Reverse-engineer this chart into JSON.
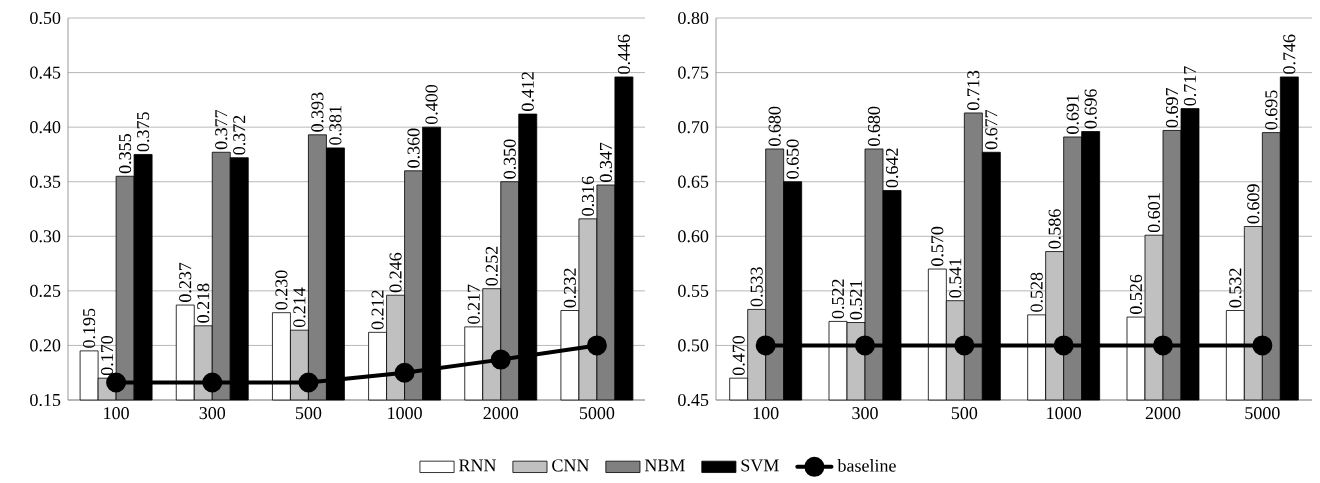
{
  "chart_data": [
    {
      "type": "bar",
      "categories": [
        "100",
        "300",
        "500",
        "1000",
        "2000",
        "5000"
      ],
      "ylim": [
        0.15,
        0.5
      ],
      "yticks": [
        0.15,
        {
          "value": 0.2,
          "label": "0.20"
        },
        0.25,
        {
          "value": 0.3,
          "label": "0.30"
        },
        0.35,
        {
          "value": 0.4,
          "label": "0.40"
        },
        0.45,
        {
          "value": 0.5,
          "label": "0.50"
        }
      ],
      "grid": "y",
      "legend": "bottom",
      "series": [
        {
          "name": "RNN",
          "color": "#ffffff",
          "values": [
            0.195,
            0.237,
            0.23,
            0.212,
            0.217,
            0.232
          ],
          "value_labels": [
            "0.195",
            "0.237",
            "0.230",
            "0.212",
            "0.217",
            "0.232"
          ]
        },
        {
          "name": "CNN",
          "color": "#c0c0c0",
          "values": [
            0.17,
            0.218,
            0.214,
            0.246,
            0.252,
            0.316
          ],
          "value_labels": [
            "0.170",
            "0.218",
            "0.214",
            "0.246",
            "0.252",
            "0.316"
          ]
        },
        {
          "name": "NBM",
          "color": "#808080",
          "values": [
            0.355,
            0.377,
            0.393,
            0.36,
            0.35,
            0.347
          ],
          "value_labels": [
            "0.355",
            "0.377",
            "0.393",
            "0.360",
            "0.350",
            "0.347"
          ]
        },
        {
          "name": "SVM",
          "color": "#000000",
          "values": [
            0.375,
            0.372,
            0.381,
            0.4,
            0.412,
            0.446
          ],
          "value_labels": [
            "0.375",
            "0.372",
            "0.381",
            "0.400",
            "0.412",
            "0.446"
          ]
        },
        {
          "name": "baseline",
          "type": "line",
          "marker": "circle",
          "color": "#000000",
          "values": [
            0.166,
            0.166,
            0.166,
            0.175,
            0.187,
            0.2
          ]
        }
      ]
    },
    {
      "type": "bar",
      "categories": [
        "100",
        "300",
        "500",
        "1000",
        "2000",
        "5000"
      ],
      "ylim": [
        0.45,
        0.8
      ],
      "yticks": [
        0.45,
        {
          "value": 0.5,
          "label": "0.50"
        },
        0.55,
        {
          "value": 0.6,
          "label": "0.60"
        },
        0.65,
        {
          "value": 0.7,
          "label": "0.70"
        },
        0.75,
        {
          "value": 0.8,
          "label": "0.80"
        }
      ],
      "grid": "y",
      "series": [
        {
          "color": "#ffffff",
          "values": [
            0.47,
            0.522,
            0.57,
            0.528,
            0.526,
            0.532
          ],
          "value_labels": [
            "0.470",
            "0.522",
            "0.570",
            "0.528",
            "0.526",
            "0.532"
          ]
        },
        {
          "color": "#c0c0c0",
          "values": [
            0.533,
            0.521,
            0.541,
            0.586,
            0.601,
            0.609
          ],
          "value_labels": [
            "0.533",
            "0.521",
            "0.541",
            "0.586",
            "0.601",
            "0.609"
          ]
        },
        {
          "color": "#808080",
          "values": [
            0.68,
            0.68,
            0.713,
            0.691,
            0.697,
            0.695
          ],
          "value_labels": [
            "0.680",
            "0.680",
            "0.713",
            "0.691",
            "0.697",
            "0.695"
          ]
        },
        {
          "color": "#000000",
          "values": [
            0.65,
            0.642,
            0.677,
            0.696,
            0.717,
            0.746
          ],
          "value_labels": [
            "0.650",
            "0.642",
            "0.677",
            "0.696",
            "0.717",
            "0.746"
          ]
        },
        {
          "type": "line",
          "marker": "circle",
          "color": "#000000",
          "values": [
            0.5,
            0.5,
            0.5,
            0.5,
            0.5,
            0.5
          ]
        }
      ]
    }
  ]
}
